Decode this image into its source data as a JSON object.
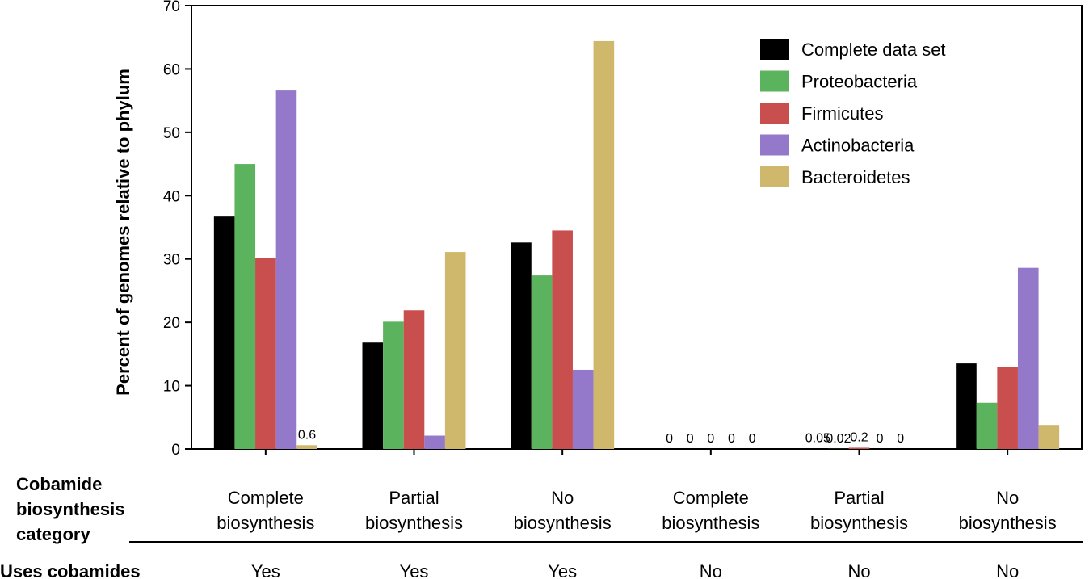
{
  "chart_data": {
    "type": "bar",
    "ylabel": "Percent of genomes relative to phylum",
    "ylim": [
      0,
      70
    ],
    "yticks": [
      0,
      10,
      20,
      30,
      40,
      50,
      60,
      70
    ],
    "grid": false,
    "legend_position": "top-right",
    "categories": [
      "Complete biosynthesis",
      "Partial biosynthesis",
      "No biosynthesis",
      "Complete biosynthesis",
      "Partial biosynthesis",
      "No biosynthesis"
    ],
    "category_lines": [
      [
        "Complete",
        "biosynthesis"
      ],
      [
        "Partial",
        "biosynthesis"
      ],
      [
        "No",
        "biosynthesis"
      ],
      [
        "Complete",
        "biosynthesis"
      ],
      [
        "Partial",
        "biosynthesis"
      ],
      [
        "No",
        "biosynthesis"
      ]
    ],
    "row_header_lines": [
      "Cobamide",
      "biosynthesis",
      "category"
    ],
    "uses_header": "Uses cobamides",
    "uses_values": [
      "Yes",
      "Yes",
      "Yes",
      "No",
      "No",
      "No"
    ],
    "series": [
      {
        "name": "Complete data set",
        "color": "#000000",
        "values": [
          36.7,
          16.8,
          32.6,
          0,
          0.05,
          13.5
        ],
        "labels": [
          "",
          "",
          "",
          "0",
          "0.05",
          ""
        ]
      },
      {
        "name": "Proteobacteria",
        "color": "#5cb35e",
        "values": [
          45.0,
          20.1,
          27.4,
          0,
          0.02,
          7.3
        ],
        "labels": [
          "",
          "",
          "",
          "0",
          "0.02",
          ""
        ]
      },
      {
        "name": "Firmicutes",
        "color": "#c94f4f",
        "values": [
          30.2,
          21.9,
          34.5,
          0,
          0.2,
          13.0
        ],
        "labels": [
          "",
          "",
          "",
          "0",
          "0.2",
          ""
        ]
      },
      {
        "name": "Actinobacteria",
        "color": "#9478c9",
        "values": [
          56.6,
          2.1,
          12.5,
          0,
          0,
          28.6
        ],
        "labels": [
          "",
          "",
          "",
          "0",
          "0",
          ""
        ]
      },
      {
        "name": "Bacteroidetes",
        "color": "#cfb86c",
        "values": [
          0.6,
          31.1,
          64.4,
          0,
          0,
          3.8
        ],
        "labels": [
          "0.6",
          "",
          "",
          "0",
          "0",
          ""
        ]
      }
    ]
  }
}
